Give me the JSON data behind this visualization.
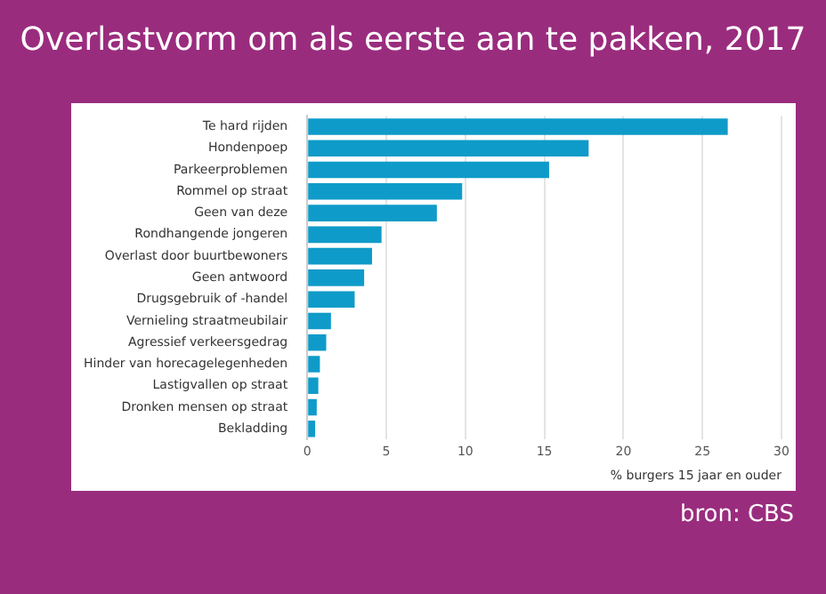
{
  "chart_data": {
    "type": "bar",
    "orientation": "horizontal",
    "title": "Overlastvorm om als eerste aan te pakken, 2017",
    "categories": [
      "Te hard rijden",
      "Hondenpoep",
      "Parkeerproblemen",
      "Rommel op straat",
      "Geen van deze",
      "Rondhangende jongeren",
      "Overlast door buurtbewoners",
      "Geen antwoord",
      "Drugsgebruik of -handel",
      "Vernieling straatmeubilair",
      "Agressief verkeersgedrag",
      "Hinder van horecagelegenheden",
      "Lastigvallen op straat",
      "Dronken mensen op straat",
      "Bekladding"
    ],
    "values": [
      26.6,
      17.8,
      15.3,
      9.8,
      8.2,
      4.7,
      4.1,
      3.6,
      3.0,
      1.5,
      1.2,
      0.8,
      0.7,
      0.6,
      0.5
    ],
    "color": "#0f9bc9",
    "xlabel": "% burgers 15 jaar en ouder",
    "xlim": [
      0,
      30
    ],
    "xticks": [
      0,
      5,
      10,
      15,
      20,
      25,
      30
    ],
    "grid": "x",
    "annotations": [
      "bron: CBS"
    ]
  }
}
